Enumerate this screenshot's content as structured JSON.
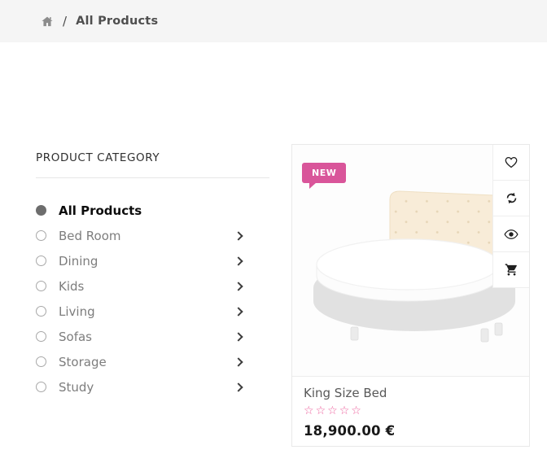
{
  "breadcrumb": {
    "home_icon": "home-icon",
    "separator": "/",
    "current": "All Products"
  },
  "sidebar": {
    "title": "PRODUCT CATEGORY",
    "items": [
      {
        "label": "All Products",
        "selected": true,
        "has_chevron": false
      },
      {
        "label": "Bed Room",
        "selected": false,
        "has_chevron": true
      },
      {
        "label": "Dining",
        "selected": false,
        "has_chevron": true
      },
      {
        "label": "Kids",
        "selected": false,
        "has_chevron": true
      },
      {
        "label": "Living",
        "selected": false,
        "has_chevron": true
      },
      {
        "label": "Sofas",
        "selected": false,
        "has_chevron": true
      },
      {
        "label": "Storage",
        "selected": false,
        "has_chevron": true
      },
      {
        "label": "Study",
        "selected": false,
        "has_chevron": true
      }
    ]
  },
  "product_card": {
    "badge": "NEW",
    "title": "King Size Bed",
    "rating": {
      "value": 0,
      "max": 5
    },
    "price": "18,900.00 €",
    "image_alt": "round king size bed with tufted cream headboard",
    "actions": [
      {
        "name": "add to wishlist",
        "icon": "heart-icon"
      },
      {
        "name": "compare",
        "icon": "refresh-icon"
      },
      {
        "name": "quick view",
        "icon": "eye-icon"
      },
      {
        "name": "add to cart",
        "icon": "cart-icon"
      }
    ]
  },
  "colors": {
    "accent_pink": "#d9559a",
    "star_pink": "#ed5f9c",
    "breadcrumb_bg": "#f5f5f5",
    "card_border": "#e9e9e9",
    "headboard_cream": "#f8ecd8",
    "bed_base_gray": "#e1e1e1"
  }
}
